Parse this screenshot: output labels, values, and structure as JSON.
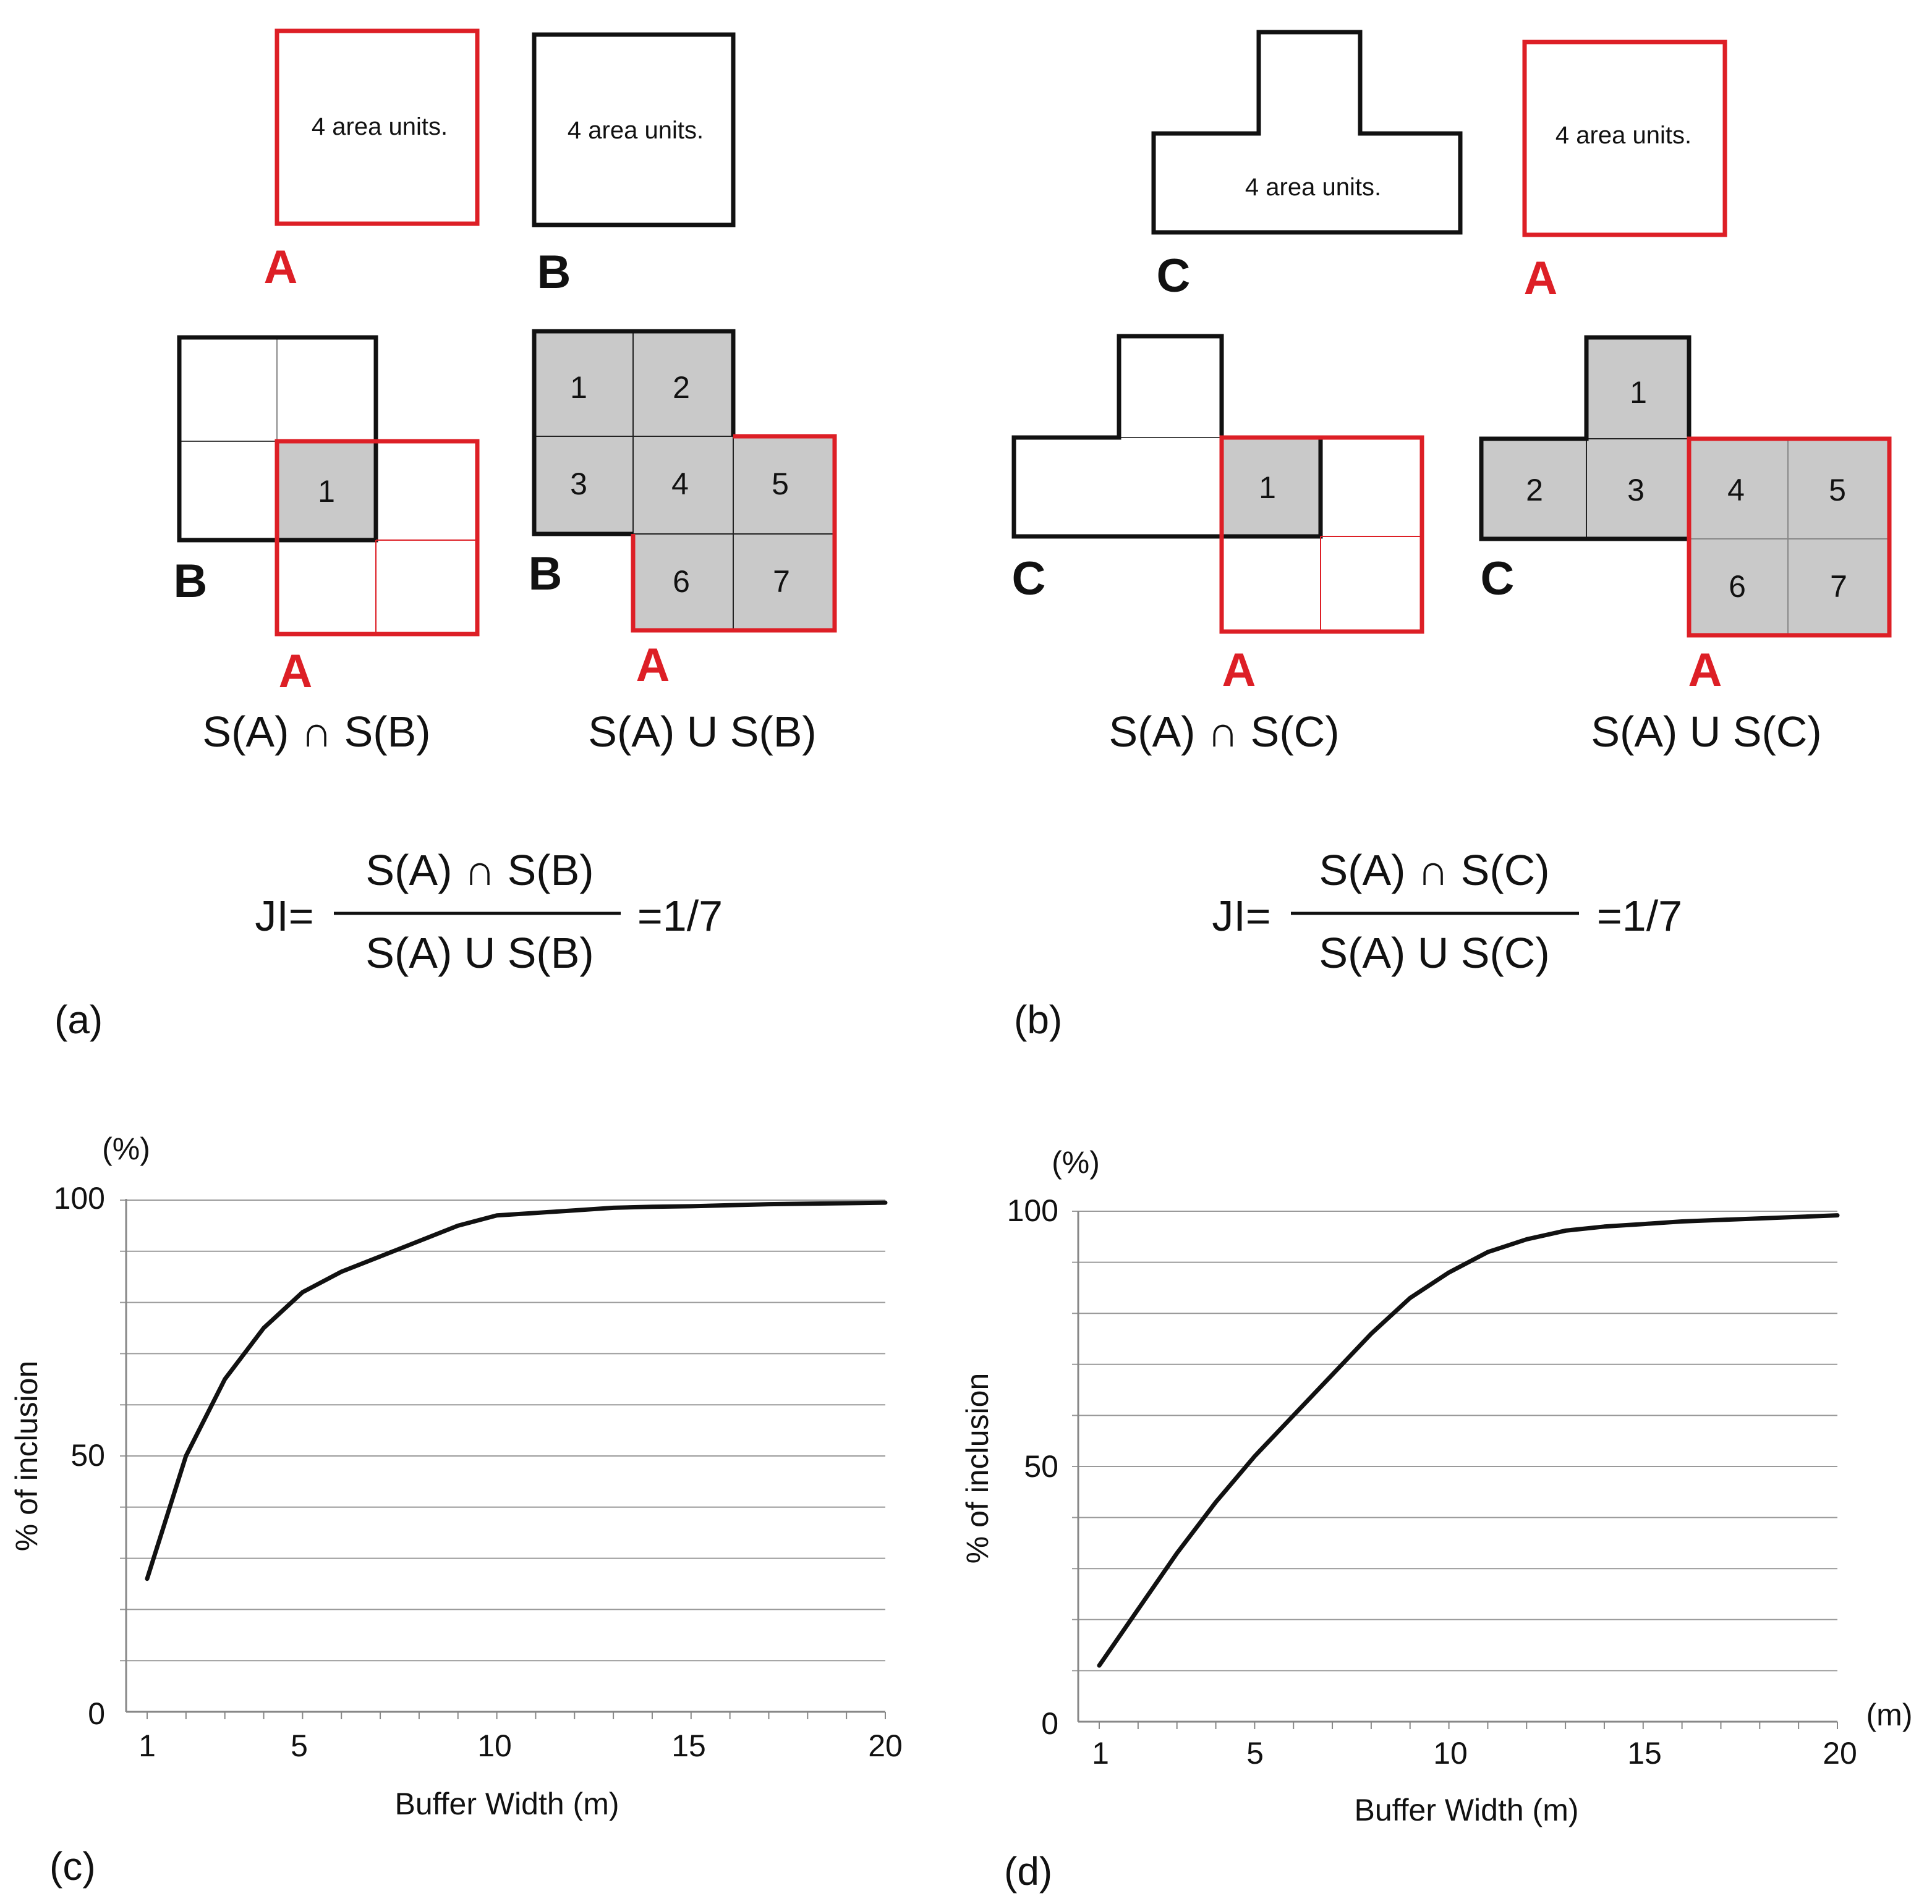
{
  "colors": {
    "accent": "#dd1f26",
    "ink": "#111111",
    "cell_fill": "#c9c9c9",
    "grid": "#9a9a9a"
  },
  "area_text": "4 area units.",
  "panel_a": {
    "label": "(a)",
    "shape_a": "A",
    "shape_b": "B",
    "intersection_caption": "S(A) ∩ S(B)",
    "union_caption": "S(A) U S(B)",
    "intersection_cells": [
      "1"
    ],
    "union_cells": [
      "1",
      "2",
      "3",
      "4",
      "5",
      "6",
      "7"
    ],
    "formula": {
      "prefix": "JI=",
      "numerator": "S(A) ∩ S(B)",
      "denominator": "S(A) U S(B)",
      "result": "=1/7"
    }
  },
  "panel_b": {
    "label": "(b)",
    "shape_c": "C",
    "shape_a": "A",
    "intersection_caption": "S(A) ∩ S(C)",
    "union_caption": "S(A) U S(C)",
    "intersection_cells": [
      "1"
    ],
    "union_cells": [
      "1",
      "2",
      "3",
      "4",
      "5",
      "6",
      "7"
    ],
    "formula": {
      "prefix": "JI=",
      "numerator": "S(A) ∩ S(C)",
      "denominator": "S(A) U S(C)",
      "result": "=1/7"
    }
  },
  "chart_data": [
    {
      "panel": "(c)",
      "type": "line",
      "title": "",
      "xlabel": "Buffer Width (m)",
      "ylabel": "% of inclusion",
      "yunit": "(%)",
      "xunit": "",
      "xlim": [
        1,
        20
      ],
      "ylim": [
        0,
        100
      ],
      "xticks": [
        1,
        5,
        10,
        15,
        20
      ],
      "yticks": [
        0,
        50,
        100
      ],
      "grid_step": 10,
      "x": [
        1,
        2,
        3,
        4,
        5,
        6,
        7,
        8,
        9,
        10,
        11,
        12,
        13,
        14,
        15,
        16,
        17,
        18,
        19,
        20
      ],
      "y": [
        26,
        50,
        65,
        75,
        82,
        86,
        89,
        92,
        95,
        97,
        97.5,
        98,
        98.5,
        98.7,
        98.8,
        99,
        99.2,
        99.3,
        99.4,
        99.5
      ]
    },
    {
      "panel": "(d)",
      "type": "line",
      "title": "",
      "xlabel": "Buffer Width (m)",
      "ylabel": "% of inclusion",
      "yunit": "(%)",
      "xunit": "(m)",
      "xlim": [
        1,
        20
      ],
      "ylim": [
        0,
        100
      ],
      "xticks": [
        1,
        5,
        10,
        15,
        20
      ],
      "yticks": [
        0,
        50,
        100
      ],
      "grid_step": 10,
      "x": [
        1,
        2,
        3,
        4,
        5,
        6,
        7,
        8,
        9,
        10,
        11,
        12,
        13,
        14,
        15,
        16,
        17,
        18,
        19,
        20
      ],
      "y": [
        11,
        22,
        33,
        43,
        52,
        60,
        68,
        76,
        83,
        88,
        92,
        94.5,
        96.2,
        97,
        97.5,
        98,
        98.3,
        98.6,
        98.9,
        99.2
      ]
    }
  ]
}
